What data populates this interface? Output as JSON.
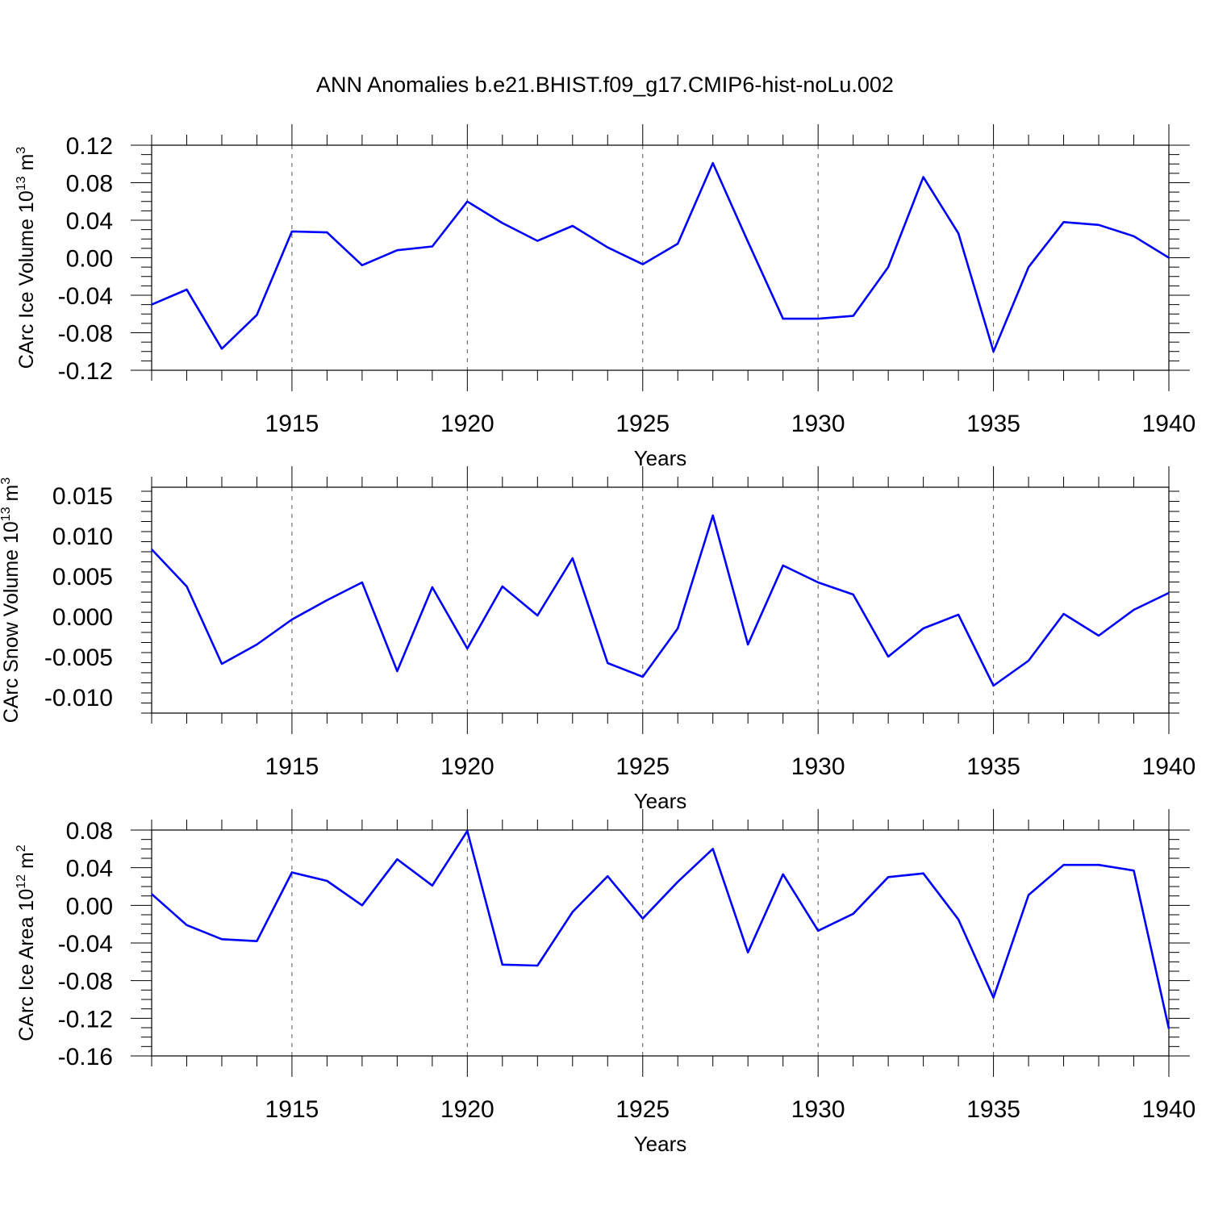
{
  "title": "ANN Anomalies b.e21.BHIST.f09_g17.CMIP6-hist-noLu.002",
  "line_color": "#0000ff",
  "chart_data": [
    {
      "type": "line",
      "ylabel": {
        "pre": "CArc Ice Volume 10",
        "exp": "13",
        "unit": " m",
        "unit_exp": "3"
      },
      "xlabel": "Years",
      "xlim": [
        1911,
        1940
      ],
      "ylim": [
        -0.12,
        0.12
      ],
      "yticks": [
        -0.12,
        -0.08,
        -0.04,
        0.0,
        0.04,
        0.08,
        0.12
      ],
      "ytick_labels": [
        "-0.12",
        "-0.08",
        "-0.04",
        "0.00",
        "0.04",
        "0.08",
        "0.12"
      ],
      "xticks": [
        1915,
        1920,
        1925,
        1930,
        1935,
        1940
      ],
      "xtick_labels": [
        "1915",
        "1920",
        "1925",
        "1930",
        "1935",
        "1940"
      ],
      "grid": "dashed vertical at major x ticks",
      "x": [
        1911,
        1912,
        1913,
        1914,
        1915,
        1916,
        1917,
        1918,
        1919,
        1920,
        1921,
        1922,
        1923,
        1924,
        1925,
        1926,
        1927,
        1928,
        1929,
        1930,
        1931,
        1932,
        1933,
        1934,
        1935,
        1936,
        1937,
        1938,
        1939,
        1940
      ],
      "y": [
        -0.05,
        -0.034,
        -0.097,
        -0.061,
        0.028,
        0.027,
        -0.008,
        0.008,
        0.012,
        0.06,
        0.037,
        0.018,
        0.034,
        0.011,
        -0.007,
        0.015,
        0.101,
        0.017,
        -0.065,
        -0.065,
        -0.062,
        -0.01,
        0.086,
        0.026,
        -0.1,
        -0.01,
        0.038,
        0.035,
        0.023,
        0.0
      ]
    },
    {
      "type": "line",
      "ylabel": {
        "pre": "CArc Snow Volume 10",
        "exp": "13",
        "unit": " m",
        "unit_exp": "3"
      },
      "xlabel": "Years",
      "xlim": [
        1911,
        1940
      ],
      "ylim": [
        -0.012,
        0.016
      ],
      "yticks": [
        -0.01,
        -0.005,
        0.0,
        0.005,
        0.01,
        0.015
      ],
      "ytick_labels": [
        "-0.010",
        "-0.005",
        "0.000",
        "0.005",
        "0.010",
        "0.015"
      ],
      "xticks": [
        1915,
        1920,
        1925,
        1930,
        1935,
        1940
      ],
      "xtick_labels": [
        "1915",
        "1920",
        "1925",
        "1930",
        "1935",
        "1940"
      ],
      "grid": "dashed vertical at major x ticks",
      "x": [
        1911,
        1912,
        1913,
        1914,
        1915,
        1916,
        1917,
        1918,
        1919,
        1920,
        1921,
        1922,
        1923,
        1924,
        1925,
        1926,
        1927,
        1928,
        1929,
        1930,
        1931,
        1932,
        1933,
        1934,
        1935,
        1936,
        1937,
        1938,
        1939,
        1940
      ],
      "y": [
        0.0083,
        0.0037,
        -0.0059,
        -0.0035,
        -0.0004,
        0.002,
        0.0042,
        -0.0068,
        0.0036,
        -0.004,
        0.0037,
        0.0001,
        0.0072,
        -0.0058,
        -0.0075,
        -0.0015,
        0.0125,
        -0.0035,
        0.0063,
        0.0042,
        0.0027,
        -0.005,
        -0.0015,
        0.0002,
        -0.0086,
        -0.0055,
        0.0003,
        -0.0024,
        0.0008,
        0.0029
      ]
    },
    {
      "type": "line",
      "ylabel": {
        "pre": "CArc Ice Area 10",
        "exp": "12",
        "unit": " m",
        "unit_exp": "2"
      },
      "xlabel": "Years",
      "xlim": [
        1911,
        1940
      ],
      "ylim": [
        -0.16,
        0.08
      ],
      "yticks": [
        -0.16,
        -0.12,
        -0.08,
        -0.04,
        0.0,
        0.04,
        0.08
      ],
      "ytick_labels": [
        "-0.16",
        "-0.12",
        "-0.08",
        "-0.04",
        "0.00",
        "0.04",
        "0.08"
      ],
      "xticks": [
        1915,
        1920,
        1925,
        1930,
        1935,
        1940
      ],
      "xtick_labels": [
        "1915",
        "1920",
        "1925",
        "1930",
        "1935",
        "1940"
      ],
      "grid": "dashed vertical at major x ticks",
      "x": [
        1911,
        1912,
        1913,
        1914,
        1915,
        1916,
        1917,
        1918,
        1919,
        1920,
        1921,
        1922,
        1923,
        1924,
        1925,
        1926,
        1927,
        1928,
        1929,
        1930,
        1931,
        1932,
        1933,
        1934,
        1935,
        1936,
        1937,
        1938,
        1939,
        1940
      ],
      "y": [
        0.012,
        -0.021,
        -0.036,
        -0.038,
        0.035,
        0.026,
        0.0,
        0.049,
        0.021,
        0.079,
        -0.063,
        -0.064,
        -0.007,
        0.031,
        -0.014,
        0.025,
        0.06,
        -0.05,
        0.033,
        -0.027,
        -0.009,
        0.03,
        0.034,
        -0.015,
        -0.098,
        0.011,
        0.043,
        0.043,
        0.037,
        -0.131
      ]
    }
  ]
}
